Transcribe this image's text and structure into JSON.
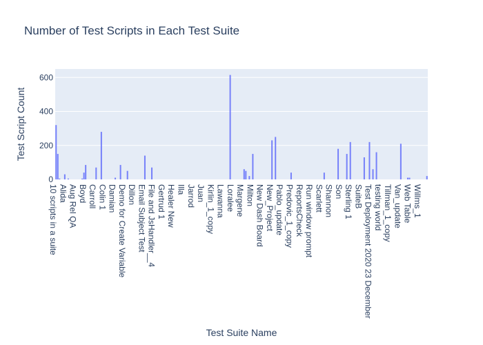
{
  "chart_data": {
    "type": "bar",
    "title": "Number of Test Scripts in Each Test Suite",
    "xlabel": "Test Suite Name",
    "ylabel": "Test Script Count",
    "ylim": [
      0,
      650
    ],
    "yticks": [
      0,
      200,
      400,
      600
    ],
    "grid": true,
    "legend": "none",
    "colors": {
      "bar": "#636efa",
      "plot_bg": "#e5ecf6",
      "text": "#2a3f5f"
    },
    "x_tick_labels": [
      "10 scripts in a suite",
      "Alida",
      "Aug Rel QA",
      "Boyd",
      "Carroll",
      "Colin 1",
      "Damian",
      "Demo for Create Variable",
      "Dillon",
      "Email Subject Test",
      "File and JsHandler__4",
      "Gertrud 1",
      "Healer New",
      "Illa",
      "Jarrod",
      "Juan",
      "Kirlin_1_copy",
      "Lawanna",
      "Loralee",
      "Margene",
      "Milton",
      "New Dash Board",
      "New_Project",
      "Pablo_update",
      "Predovic_1_copy",
      "ReportsCheck",
      "Run window prompt",
      "Scarlett",
      "Shannon",
      "Son",
      "Sterling 1",
      "SuiteB",
      "Test Deployment 2020 23 December",
      "testing world",
      "Tillman_1_copy",
      "Van_update",
      "Web Table",
      "Willms_1"
    ],
    "values": [
      320,
      150,
      5,
      0,
      0,
      30,
      0,
      5,
      0,
      0,
      0,
      0,
      0,
      0,
      0,
      5,
      40,
      85,
      0,
      0,
      0,
      0,
      0,
      70,
      0,
      0,
      280,
      0,
      0,
      0,
      0,
      0,
      0,
      0,
      10,
      0,
      0,
      85,
      0,
      0,
      0,
      50,
      0,
      0,
      0,
      0,
      0,
      0,
      0,
      0,
      0,
      140,
      0,
      0,
      0,
      70,
      0,
      0,
      0,
      0,
      0,
      0,
      0,
      0,
      0,
      0,
      0,
      0,
      0,
      0,
      0,
      0,
      0,
      0,
      0,
      0,
      0,
      0,
      0,
      0,
      0,
      0,
      0,
      0,
      0,
      0,
      0,
      0,
      0,
      0,
      0,
      0,
      0,
      0,
      0,
      0,
      0,
      0,
      0,
      0,
      615,
      0,
      0,
      0,
      0,
      0,
      0,
      0,
      60,
      50,
      0,
      20,
      0,
      150,
      0,
      0,
      0,
      0,
      0,
      0,
      0,
      0,
      0,
      0,
      230,
      0,
      250,
      0,
      0,
      0,
      0,
      0,
      0,
      0,
      0,
      40,
      0,
      0,
      0,
      0,
      0,
      0,
      0,
      0,
      0,
      0,
      0,
      0,
      0,
      0,
      0,
      0,
      0,
      0,
      40,
      0,
      0,
      0,
      0,
      0,
      0,
      0,
      180,
      0,
      0,
      0,
      0,
      150,
      0,
      220,
      0,
      0,
      0,
      0,
      0,
      0,
      0,
      130,
      0,
      0,
      220,
      0,
      60,
      0,
      160,
      0,
      0,
      0,
      0,
      0,
      0,
      0,
      0,
      0,
      0,
      0,
      0,
      0,
      210,
      0,
      0,
      0,
      10,
      10,
      0,
      0,
      0,
      0,
      0,
      0,
      0,
      0,
      0,
      20
    ]
  }
}
